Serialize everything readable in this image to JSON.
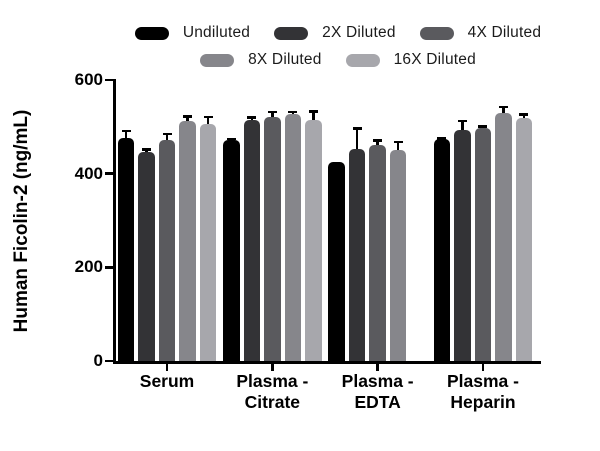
{
  "figure": {
    "background": "#ffffff"
  },
  "legend": {
    "rows": [
      [
        {
          "label": "Undiluted",
          "color": "#000000"
        },
        {
          "label": "2X Diluted",
          "color": "#333336"
        },
        {
          "label": "4X Diluted",
          "color": "#5a5a5e"
        }
      ],
      [
        {
          "label": "8X Diluted",
          "color": "#86868b"
        },
        {
          "label": "16X Diluted",
          "color": "#a7a7ac"
        }
      ]
    ]
  },
  "chart_data": {
    "type": "bar",
    "title": "",
    "xlabel": "",
    "ylabel": "Human Ficolin-2 (ng/mL)",
    "ylim": [
      0,
      600
    ],
    "yticks": [
      0,
      200,
      400,
      600
    ],
    "grid": false,
    "legend_position": "top",
    "categories": [
      "Serum",
      "Plasma -\nCitrate",
      "Plasma -\nEDTA",
      "Plasma -\nHeparin"
    ],
    "series": [
      {
        "name": "Undiluted",
        "color": "#000000",
        "values": [
          477,
          471,
          425,
          473
        ],
        "errors": [
          15,
          4,
          0,
          3
        ]
      },
      {
        "name": "2X Diluted",
        "color": "#333336",
        "values": [
          447,
          514,
          452,
          493
        ],
        "errors": [
          5,
          6,
          45,
          20
        ]
      },
      {
        "name": "4X Diluted",
        "color": "#5a5a5e",
        "values": [
          472,
          521,
          462,
          497
        ],
        "errors": [
          13,
          11,
          9,
          4
        ]
      },
      {
        "name": "8X Diluted",
        "color": "#86868b",
        "values": [
          513,
          527,
          450,
          530
        ],
        "errors": [
          10,
          5,
          18,
          13
        ]
      },
      {
        "name": "16X Diluted",
        "color": "#a7a7ac",
        "values": [
          505,
          514,
          null,
          518
        ],
        "errors": [
          16,
          19,
          null,
          9
        ]
      }
    ]
  }
}
